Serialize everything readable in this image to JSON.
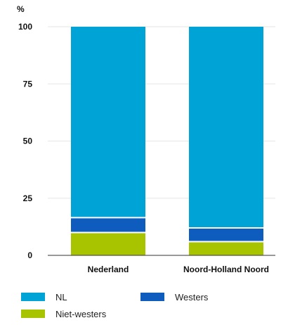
{
  "chart_data": {
    "type": "bar",
    "stacked": true,
    "ylabel": "%",
    "ylim": [
      0,
      100
    ],
    "yticks": [
      "0",
      "25",
      "50",
      "75",
      "100"
    ],
    "categories": [
      "Nederland",
      "Noord-Holland Noord"
    ],
    "series": [
      {
        "name": "Niet-westers",
        "color": "#a8c400",
        "values": [
          10.0,
          6.0
        ]
      },
      {
        "name": "Westers",
        "color": "#0f5cbf",
        "values": [
          6.5,
          6.0
        ]
      },
      {
        "name": "NL",
        "color": "#00a3d6",
        "values": [
          83.5,
          88.0
        ]
      }
    ],
    "grid": true,
    "legend": {
      "placement": "bottom",
      "order": [
        "NL",
        "Westers",
        "Niet-westers"
      ]
    }
  }
}
